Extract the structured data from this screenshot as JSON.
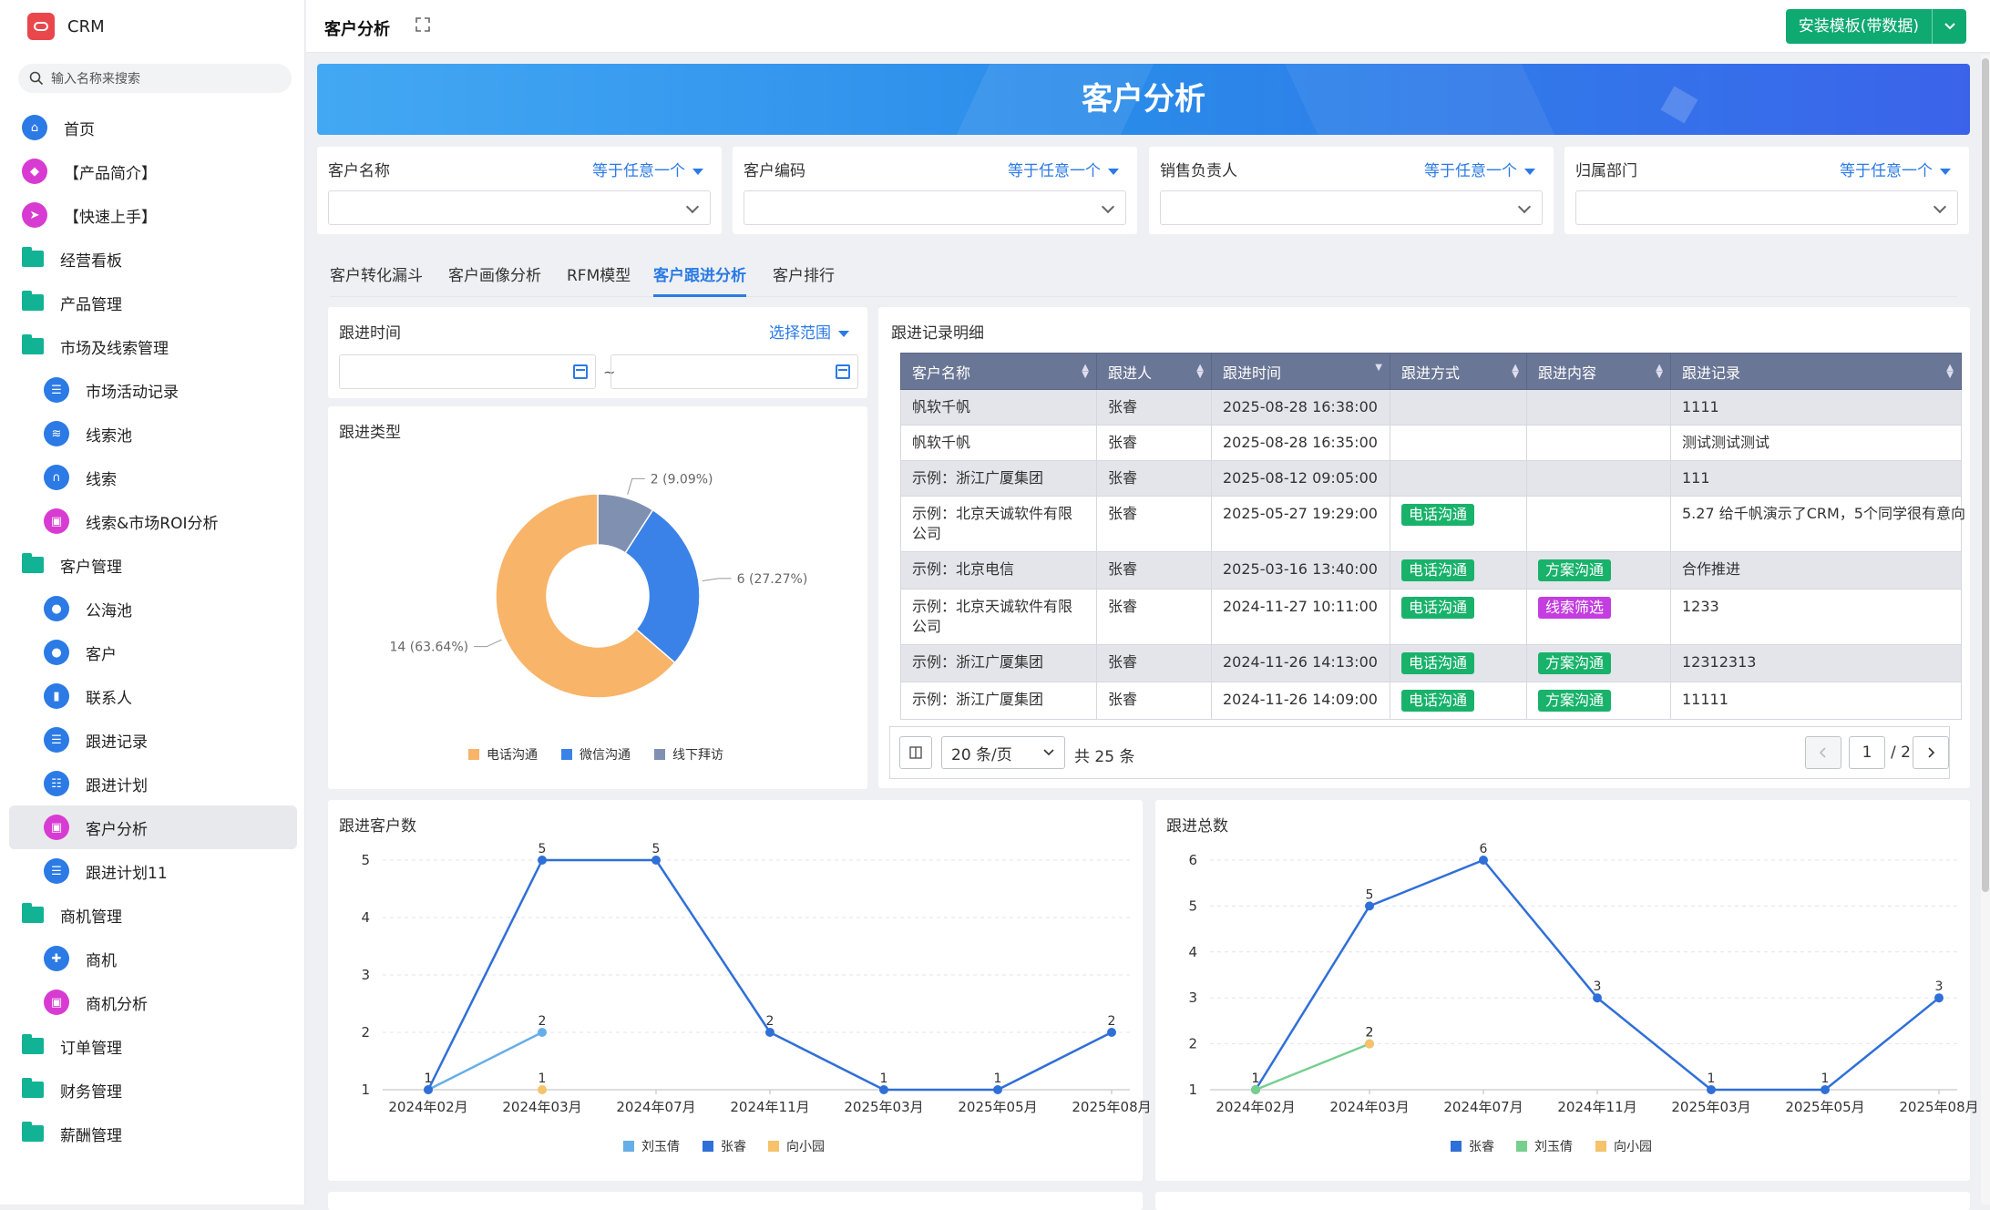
{
  "app": {
    "name": "CRM"
  },
  "search": {
    "placeholder": "输入名称来搜索"
  },
  "nav": [
    {
      "label": "首页",
      "level": 1,
      "kind": "icon",
      "color": "#2b7ae5",
      "glyph": "⌂",
      "icon": "home-icon"
    },
    {
      "label": "【产品简介】",
      "level": 1,
      "kind": "icon",
      "color": "#d83bd2",
      "glyph": "◆",
      "icon": "tag-icon"
    },
    {
      "label": "【快速上手】",
      "level": 1,
      "kind": "icon",
      "color": "#d83bd2",
      "glyph": "➤",
      "icon": "send-icon"
    },
    {
      "label": "经营看板",
      "level": 1,
      "kind": "folder",
      "icon": "folder-icon"
    },
    {
      "label": "产品管理",
      "level": 1,
      "kind": "folder",
      "icon": "folder-icon"
    },
    {
      "label": "市场及线索管理",
      "level": 1,
      "kind": "folder-open",
      "icon": "folder-open-icon"
    },
    {
      "label": "市场活动记录",
      "level": 2,
      "kind": "icon",
      "color": "#2b7ae5",
      "glyph": "☰",
      "icon": "document-icon"
    },
    {
      "label": "线索池",
      "level": 2,
      "kind": "icon",
      "color": "#2b7ae5",
      "glyph": "≋",
      "icon": "pool-icon"
    },
    {
      "label": "线索",
      "level": 2,
      "kind": "icon",
      "color": "#2b7ae5",
      "glyph": "∩",
      "icon": "magnet-icon"
    },
    {
      "label": "线索&市场ROI分析",
      "level": 2,
      "kind": "icon",
      "color": "#d83bd2",
      "glyph": "▣",
      "icon": "analysis-icon"
    },
    {
      "label": "客户管理",
      "level": 1,
      "kind": "folder-open",
      "icon": "folder-open-icon"
    },
    {
      "label": "公海池",
      "level": 2,
      "kind": "icon",
      "color": "#2b7ae5",
      "glyph": "●",
      "icon": "user-icon"
    },
    {
      "label": "客户",
      "level": 2,
      "kind": "icon",
      "color": "#2b7ae5",
      "glyph": "●",
      "icon": "user-icon"
    },
    {
      "label": "联系人",
      "level": 2,
      "kind": "icon",
      "color": "#2b7ae5",
      "glyph": "▮",
      "icon": "contact-icon"
    },
    {
      "label": "跟进记录",
      "level": 2,
      "kind": "icon",
      "color": "#2b7ae5",
      "glyph": "☰",
      "icon": "document-icon"
    },
    {
      "label": "跟进计划",
      "level": 2,
      "kind": "icon",
      "color": "#2b7ae5",
      "glyph": "☷",
      "icon": "list-icon"
    },
    {
      "label": "客户分析",
      "level": 2,
      "kind": "icon",
      "color": "#d83bd2",
      "glyph": "▣",
      "icon": "analysis-icon",
      "active": true
    },
    {
      "label": "跟进计划11",
      "level": 2,
      "kind": "icon",
      "color": "#2b7ae5",
      "glyph": "☰",
      "icon": "document-icon"
    },
    {
      "label": "商机管理",
      "level": 1,
      "kind": "folder-open",
      "icon": "folder-open-icon"
    },
    {
      "label": "商机",
      "level": 2,
      "kind": "icon",
      "color": "#2b7ae5",
      "glyph": "✚",
      "icon": "plus-circle-icon"
    },
    {
      "label": "商机分析",
      "level": 2,
      "kind": "icon",
      "color": "#d83bd2",
      "glyph": "▣",
      "icon": "analysis-icon"
    },
    {
      "label": "订单管理",
      "level": 1,
      "kind": "folder",
      "icon": "folder-icon"
    },
    {
      "label": "财务管理",
      "level": 1,
      "kind": "folder",
      "icon": "folder-icon"
    },
    {
      "label": "薪酬管理",
      "level": 1,
      "kind": "folder",
      "icon": "folder-icon"
    }
  ],
  "header": {
    "title": "客户分析",
    "install_label": "安装模板(带数据)"
  },
  "banner": {
    "title": "客户分析"
  },
  "filters": [
    {
      "label": "客户名称",
      "op": "等于任意一个"
    },
    {
      "label": "客户编码",
      "op": "等于任意一个"
    },
    {
      "label": "销售负责人",
      "op": "等于任意一个"
    },
    {
      "label": "归属部门",
      "op": "等于任意一个"
    }
  ],
  "tabs": [
    {
      "label": "客户转化漏斗"
    },
    {
      "label": "客户画像分析"
    },
    {
      "label": "RFM模型"
    },
    {
      "label": "客户跟进分析",
      "active": true
    },
    {
      "label": "客户排行"
    }
  ],
  "date_filter": {
    "label": "跟进时间",
    "op": "选择范围",
    "sep": "~"
  },
  "table": {
    "title": "跟进记录明细",
    "columns": [
      "客户名称",
      "跟进人",
      "跟进时间",
      "跟进方式",
      "跟进内容",
      "跟进记录"
    ],
    "rows": [
      {
        "customer": "帆软千帆",
        "owner": "张睿",
        "time": "2025-08-28 16:38:00",
        "method": "",
        "content": "",
        "record": "1111"
      },
      {
        "customer": "帆软千帆",
        "owner": "张睿",
        "time": "2025-08-28 16:35:00",
        "method": "",
        "content": "",
        "record": "测试测试测试"
      },
      {
        "customer": "示例：浙江广厦集团",
        "owner": "张睿",
        "time": "2025-08-12 09:05:00",
        "method": "",
        "content": "",
        "record": "111"
      },
      {
        "customer": "示例：北京天诚软件有限公司",
        "owner": "张睿",
        "time": "2025-05-27 19:29:00",
        "method": "电话沟通",
        "content": "",
        "record": "5.27 给千帆演示了CRM，5个同学很有意向"
      },
      {
        "customer": "示例：北京电信",
        "owner": "张睿",
        "time": "2025-03-16 13:40:00",
        "method": "电话沟通",
        "content": "方案沟通",
        "record": "合作推进"
      },
      {
        "customer": "示例：北京天诚软件有限公司",
        "owner": "张睿",
        "time": "2024-11-27 10:11:00",
        "method": "电话沟通",
        "content": "线索筛选",
        "record": "1233"
      },
      {
        "customer": "示例：浙江广厦集团",
        "owner": "张睿",
        "time": "2024-11-26 14:13:00",
        "method": "电话沟通",
        "content": "方案沟通",
        "record": "12312313"
      },
      {
        "customer": "示例：浙江广厦集团",
        "owner": "张睿",
        "time": "2024-11-26 14:09:00",
        "method": "电话沟通",
        "content": "方案沟通",
        "record": "11111"
      }
    ],
    "tag_colors": {
      "电话沟通": "#19b26b",
      "方案沟通": "#19b26b",
      "线索筛选": "#c43de0"
    }
  },
  "pagination": {
    "page_size": "20 条/页",
    "total": "共 25 条",
    "current": "1",
    "pages": "/ 2"
  },
  "chart_data": [
    {
      "type": "pie",
      "title": "跟进类型",
      "categories": [
        "电话沟通",
        "微信沟通",
        "线下拜访"
      ],
      "values": [
        14,
        6,
        2
      ],
      "labels": [
        "14 (63.64%)",
        "6 (27.27%)",
        "2 (9.09%)"
      ],
      "colors": [
        "#f8b469",
        "#3b82e8",
        "#8090b0"
      ],
      "legend": "bottom"
    },
    {
      "type": "line",
      "title": "跟进客户数",
      "categories": [
        "2024年02月",
        "2024年03月",
        "2024年07月",
        "2024年11月",
        "2025年03月",
        "2025年05月",
        "2025年08月"
      ],
      "ylim": [
        1,
        5
      ],
      "yticks": [
        1,
        2,
        3,
        4,
        5
      ],
      "series": [
        {
          "name": "刘玉倩",
          "color": "#66aee8",
          "x": [
            "2024年02月",
            "2024年03月"
          ],
          "values": [
            1,
            2
          ]
        },
        {
          "name": "张睿",
          "color": "#2f6fd8",
          "x": [
            "2024年02月",
            "2024年03月",
            "2024年07月",
            "2024年11月",
            "2025年03月",
            "2025年05月",
            "2025年08月"
          ],
          "values": [
            1,
            5,
            5,
            2,
            1,
            1,
            2
          ]
        },
        {
          "name": "向小园",
          "color": "#f6c26a",
          "x": [
            "2024年03月"
          ],
          "values": [
            1
          ]
        }
      ],
      "legend": "bottom"
    },
    {
      "type": "line",
      "title": "跟进总数",
      "categories": [
        "2024年02月",
        "2024年03月",
        "2024年07月",
        "2024年11月",
        "2025年03月",
        "2025年05月",
        "2025年08月"
      ],
      "ylim": [
        1,
        6
      ],
      "yticks": [
        1,
        2,
        3,
        4,
        5,
        6
      ],
      "series": [
        {
          "name": "张睿",
          "color": "#2f6fd8",
          "x": [
            "2024年02月",
            "2024年03月",
            "2024年07月",
            "2024年11月",
            "2025年03月",
            "2025年05月",
            "2025年08月"
          ],
          "values": [
            1,
            5,
            6,
            3,
            1,
            1,
            3
          ]
        },
        {
          "name": "刘玉倩",
          "color": "#77cf8f",
          "x": [
            "2024年02月",
            "2024年03月"
          ],
          "values": [
            1,
            2
          ]
        },
        {
          "name": "向小园",
          "color": "#f6c26a",
          "x": [
            "2024年03月"
          ],
          "values": [
            2
          ]
        }
      ],
      "legend": "bottom"
    }
  ]
}
